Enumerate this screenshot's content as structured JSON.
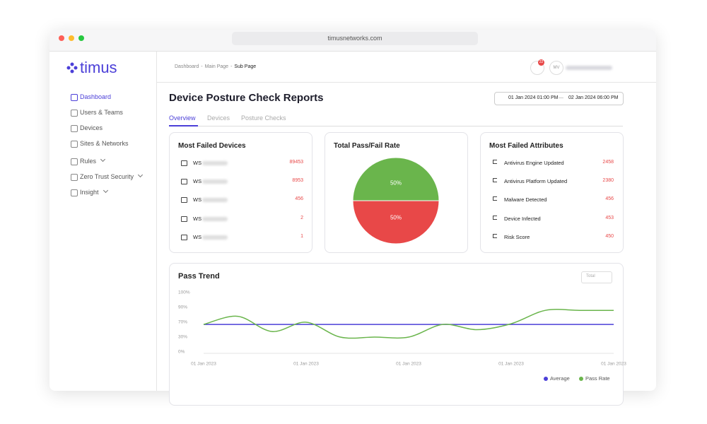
{
  "browser": {
    "url": "timusnetworks.com"
  },
  "sidebar": {
    "logo": "timus",
    "nav": [
      "Dashboard",
      "Users & Teams",
      "Devices",
      "Sites & Networks",
      "Rules",
      "Zero Trust Security",
      "Insight"
    ]
  },
  "header": {
    "breadcrumb": [
      "Dashboard",
      "-",
      "Main Page",
      "-",
      "Sub Page"
    ],
    "notification_count": "22",
    "avatar": "MV"
  },
  "report": {
    "title": "Device Posture Check Reports",
    "date_from": "01 Jan 2024 01:00 PM",
    "date_separator": "—",
    "date_to": "02 Jan 2024 06:00 PM",
    "tabs": [
      "Overview",
      "Devices",
      "Posture Checks"
    ]
  },
  "most_failed_devices": {
    "title": "Most Failed Devices",
    "rows": [
      {
        "name": "WS",
        "count": 89453
      },
      {
        "name": "WS",
        "count": 8953
      },
      {
        "name": "WS",
        "count": 456
      },
      {
        "name": "WS",
        "count": 2
      },
      {
        "name": "WS",
        "count": 1
      }
    ]
  },
  "pass_fail": {
    "title": "Total Pass/Fail Rate",
    "chart_data": {
      "type": "pie",
      "values": [
        50,
        50
      ],
      "value_labels": [
        "50%",
        "50%"
      ],
      "colors": [
        "#6ab54c",
        "#e84848"
      ]
    }
  },
  "most_failed_attributes": {
    "title": "Most Failed Attributes",
    "rows": [
      {
        "name": "Antivirus Engine Updated",
        "count": 2458
      },
      {
        "name": "Antivirus Platform Updated",
        "count": 2380
      },
      {
        "name": "Malware Detected",
        "count": 456
      },
      {
        "name": "Device Infected",
        "count": 453
      },
      {
        "name": "Risk Score",
        "count": 450
      }
    ]
  },
  "pass_trend": {
    "title": "Pass Trend",
    "filter": "Total",
    "chart_data": {
      "type": "line",
      "categories": [
        "01 Jan 2023",
        null,
        null,
        "01 Jan 2023",
        null,
        null,
        "01 Jan 2023",
        null,
        null,
        "01 Jan 2023",
        null,
        null,
        "01 Jan 2023"
      ],
      "ylim": [
        0,
        100
      ],
      "yticks": [
        {
          "value": 100,
          "label": "100%"
        },
        {
          "value": 90,
          "label": "90%"
        },
        {
          "value": 70,
          "label": "70%"
        },
        {
          "value": 30,
          "label": "30%"
        },
        {
          "value": 0,
          "label": "0%"
        }
      ],
      "series": [
        {
          "name": "Average",
          "color": "#4b3fd8",
          "values": [
            64,
            64,
            64,
            64,
            64,
            64,
            64,
            64,
            64,
            64,
            64,
            64,
            64
          ]
        },
        {
          "name": "Pass Rate",
          "color": "#6ab54c",
          "values": [
            64,
            78,
            45,
            70,
            30,
            30,
            30,
            64,
            50,
            66,
            86,
            86,
            86
          ]
        }
      ]
    }
  }
}
